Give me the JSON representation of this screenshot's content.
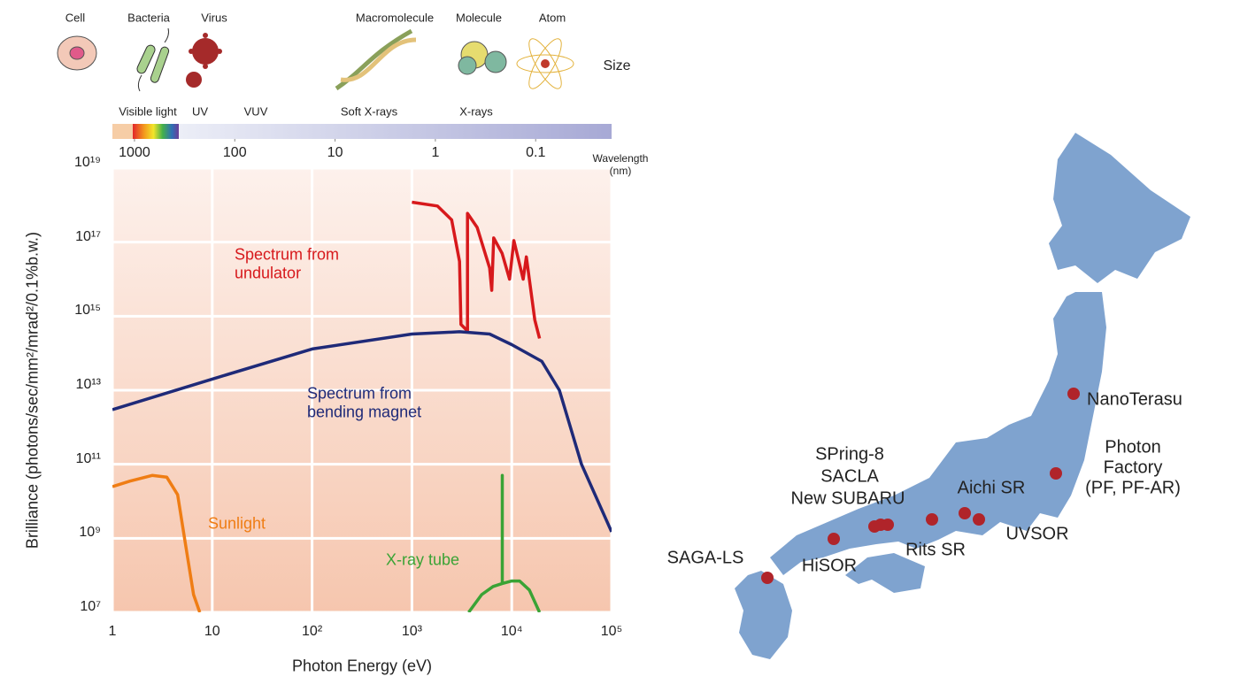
{
  "chart_data": {
    "type": "line",
    "xlabel": "Photon Energy (eV)",
    "ylabel": "Brilliance (photons/sec/mm²/mrad²/0.1%b.w.)",
    "xscale": "log",
    "yscale": "log",
    "xlim": [
      1,
      100000
    ],
    "ylim": [
      10000000,
      10000000000000000000
    ],
    "xticks": [
      1,
      10,
      {
        "value": 100,
        "label": "10²"
      },
      {
        "value": 1000,
        "label": "10³"
      },
      {
        "value": 10000,
        "label": "10⁴"
      },
      {
        "value": 100000,
        "label": "10⁵"
      }
    ],
    "yticks": [
      {
        "value": 10000000,
        "label": "10⁷"
      },
      {
        "value": 1000000000,
        "label": "10⁹"
      },
      {
        "value": 100000000000,
        "label": "10¹¹"
      },
      {
        "value": 10000000000000,
        "label": "10¹³"
      },
      {
        "value": 1000000000000000,
        "label": "10¹⁵"
      },
      {
        "value": 100000000000000000,
        "label": "10¹⁷"
      },
      {
        "value": 10000000000000000000,
        "label": "10¹⁹"
      }
    ],
    "x2label": "Wavelength\n(nm)",
    "x2scale": "log",
    "x2lim": [
      1660,
      0.0175
    ],
    "x2ticks": [
      1000,
      100,
      10,
      1,
      0.1
    ],
    "grid": true,
    "series": [
      {
        "name": "Spectrum from\nundulator",
        "color": "#d7191c",
        "x": [
          1000,
          1800,
          2500,
          3000,
          3100,
          3600,
          3600,
          4500,
          6000,
          6300,
          6600,
          8000,
          9500,
          10500,
          13000,
          14000,
          17000,
          19000
        ],
        "values": [
          1.2e+18,
          9.5e+17,
          4e+17,
          3e+16,
          600000000000000.0,
          400000000000000.0,
          6e+17,
          2.5e+17,
          2e+16,
          5000000000000000.0,
          1.3e+17,
          5e+16,
          1e+16,
          1.1e+17,
          1e+16,
          4e+16,
          800000000000000.0,
          250000000000000.0
        ]
      },
      {
        "name": "Spectrum from\nbending magnet",
        "color": "#1f2a78",
        "x": [
          1,
          10,
          100,
          1000,
          3000,
          6000,
          10000,
          20000,
          30000,
          50000,
          100000
        ],
        "values": [
          3000000000000.0,
          20000000000000.0,
          130000000000000.0,
          330000000000000.0,
          380000000000000.0,
          330000000000000.0,
          170000000000000.0,
          60000000000000.0,
          10000000000000.0,
          100000000000.0,
          1500000000.0
        ]
      },
      {
        "name": "Sunlight",
        "color": "#ef7d14",
        "x": [
          1,
          1.5,
          2.5,
          3.5,
          4.5,
          5.5,
          6.5,
          7.5
        ],
        "values": [
          25000000000.0,
          35000000000.0,
          50000000000.0,
          45000000000.0,
          15000000000.0,
          500000000.0,
          30000000.0,
          10000000.0
        ]
      },
      {
        "name": "X-ray tube",
        "color": "#3aa335",
        "x": [
          3700,
          5000,
          6500,
          8040,
          8040,
          8040,
          10000,
          12000,
          15000,
          19000
        ],
        "values": [
          10000000.0,
          30000000.0,
          50000000.0,
          60000000.0,
          50000000000.0,
          60000000.0,
          70000000.0,
          70000000.0,
          40000000.0,
          10000000.0
        ]
      }
    ]
  },
  "size_scale": {
    "title": "Size",
    "labels": [
      "Cell",
      "Bacteria",
      "Virus",
      "Macromolecule",
      "Molecule",
      "Atom"
    ]
  },
  "spectrum_bands": [
    "Visible light",
    "UV",
    "VUV",
    "Soft X-rays",
    "X-rays"
  ],
  "facilities": [
    "NanoTerasu",
    "Photon Factory\n(PF, PF-AR)",
    "SPring-8",
    "SACLA",
    "New SUBARU",
    "Aichi SR",
    "UVSOR",
    "Rits SR",
    "HiSOR",
    "SAGA-LS"
  ]
}
